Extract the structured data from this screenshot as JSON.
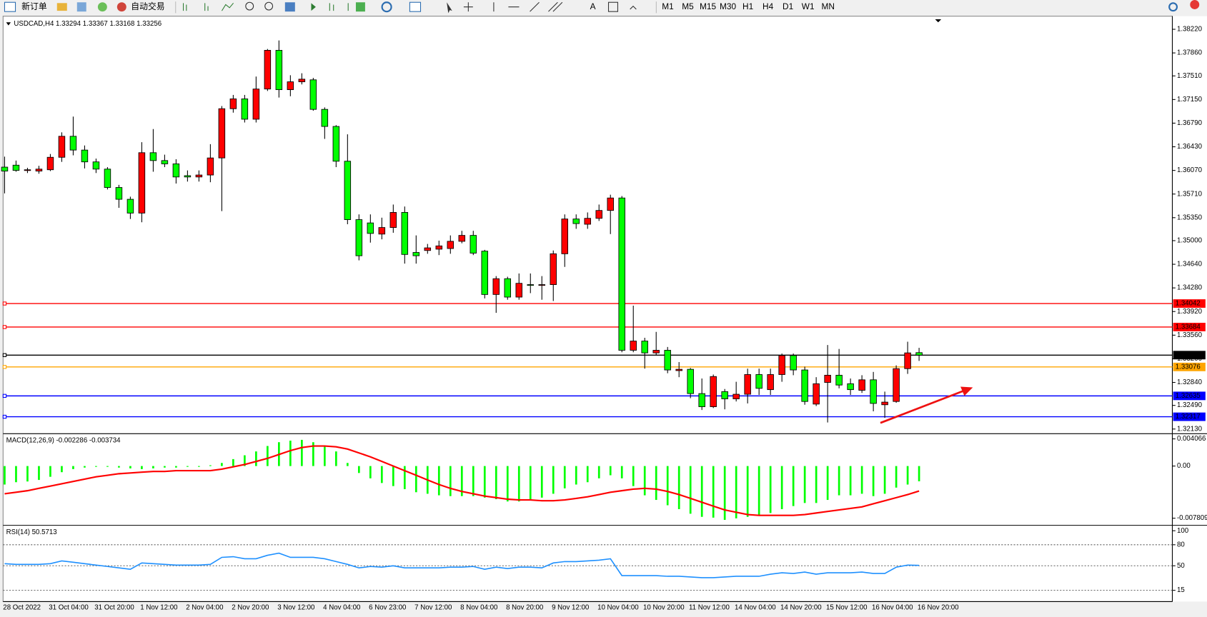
{
  "toolbar": {
    "buttons": [
      "新订单",
      "自动交易"
    ],
    "timeframes": [
      "M1",
      "M5",
      "M15",
      "M30",
      "H1",
      "H4",
      "D1",
      "W1",
      "MN"
    ]
  },
  "chart_data": [
    {
      "type": "candlestick",
      "title": "USDCAD,H4  1.33294 1.33367 1.33168 1.33256",
      "categories": [
        "28 Oct 2022",
        null,
        null,
        null,
        "31 Oct 04:00",
        null,
        null,
        null,
        "31 Oct 20:00",
        null,
        null,
        null,
        "1 Nov 12:00",
        null,
        null,
        null,
        "2 Nov 04:00",
        null,
        null,
        null,
        "2 Nov 20:00",
        null,
        null,
        null,
        "3 Nov 12:00",
        null,
        null,
        null,
        "4 Nov 04:00",
        null,
        null,
        null,
        "6 Nov 23:00",
        null,
        null,
        null,
        "7 Nov 12:00",
        null,
        null,
        null,
        "8 Nov 04:00",
        null,
        null,
        null,
        "8 Nov 20:00",
        null,
        null,
        null,
        "9 Nov 12:00",
        null,
        null,
        null,
        "10 Nov 04:00",
        null,
        null,
        null,
        "10 Nov 20:00",
        null,
        null,
        null,
        "11 Nov 12:00",
        null,
        null,
        null,
        "14 Nov 04:00",
        null,
        null,
        null,
        "14 Nov 20:00",
        null,
        null,
        null,
        "15 Nov 12:00",
        null,
        null,
        null,
        "16 Nov 04:00",
        null,
        null,
        null,
        "16 Nov 20:00"
      ],
      "open": [
        1.3612,
        1.3615,
        1.3607,
        1.3606,
        1.3608,
        1.3627,
        1.3659,
        1.3638,
        1.362,
        1.3609,
        1.3581,
        1.3563,
        1.3542,
        1.3634,
        1.3622,
        1.3617,
        1.3599,
        1.3597,
        1.36,
        1.3626,
        1.3701,
        1.3716,
        1.3685,
        1.3731,
        1.379,
        1.373,
        1.3742,
        1.3745,
        1.37,
        1.3674,
        1.3621,
        1.3532,
        1.3527,
        1.351,
        1.352,
        1.3543,
        1.3482,
        1.3485,
        1.3487,
        1.3488,
        1.3499,
        1.3508,
        1.3484,
        1.3418,
        1.3442,
        1.3414,
        1.3433,
        1.3432,
        1.3433,
        1.348,
        1.3533,
        1.3525,
        1.3534,
        1.3546,
        1.3565,
        1.3333,
        1.3347,
        1.3329,
        1.3333,
        1.3302,
        1.3304,
        1.3267,
        1.3247,
        1.327,
        1.3259,
        1.3266,
        1.3296,
        1.3273,
        1.3296,
        1.3325,
        1.3303,
        1.3251,
        1.3284,
        1.3295,
        1.3282,
        1.3272,
        1.3288,
        1.325,
        1.3255,
        1.3305,
        1.33294
      ],
      "high": [
        1.3628,
        1.3622,
        1.3611,
        1.3614,
        1.3632,
        1.3665,
        1.3689,
        1.3645,
        1.3625,
        1.3612,
        1.3585,
        1.3567,
        1.365,
        1.367,
        1.3631,
        1.3624,
        1.3607,
        1.3607,
        1.3647,
        1.3705,
        1.3722,
        1.3722,
        1.375,
        1.3792,
        1.3805,
        1.3752,
        1.3755,
        1.3748,
        1.3703,
        1.3676,
        1.3662,
        1.354,
        1.354,
        1.3535,
        1.3555,
        1.3552,
        1.3508,
        1.3495,
        1.35,
        1.3508,
        1.3515,
        1.3515,
        1.3486,
        1.3446,
        1.3445,
        1.345,
        1.345,
        1.3446,
        1.3485,
        1.354,
        1.354,
        1.3543,
        1.3555,
        1.357,
        1.3568,
        1.3401,
        1.3352,
        1.3361,
        1.3338,
        1.3315,
        1.3306,
        1.329,
        1.3296,
        1.3274,
        1.3285,
        1.3305,
        1.3305,
        1.3305,
        1.3328,
        1.3328,
        1.3308,
        1.3292,
        1.3341,
        1.3335,
        1.329,
        1.3295,
        1.33,
        1.327,
        1.331,
        1.3346,
        1.33367
      ],
      "low": [
        1.3572,
        1.3605,
        1.3603,
        1.3602,
        1.3606,
        1.362,
        1.363,
        1.361,
        1.3603,
        1.3578,
        1.355,
        1.3533,
        1.3528,
        1.3605,
        1.3612,
        1.3587,
        1.359,
        1.359,
        1.3589,
        1.3545,
        1.3695,
        1.368,
        1.368,
        1.3728,
        1.3718,
        1.372,
        1.3738,
        1.3698,
        1.3655,
        1.3612,
        1.3525,
        1.347,
        1.3497,
        1.3502,
        1.3512,
        1.3465,
        1.3465,
        1.348,
        1.3478,
        1.348,
        1.3496,
        1.3478,
        1.3412,
        1.339,
        1.341,
        1.341,
        1.342,
        1.341,
        1.3408,
        1.346,
        1.3518,
        1.3518,
        1.353,
        1.351,
        1.333,
        1.333,
        1.3305,
        1.3325,
        1.3298,
        1.3292,
        1.326,
        1.3242,
        1.3245,
        1.3243,
        1.3255,
        1.3252,
        1.3265,
        1.3265,
        1.3285,
        1.3295,
        1.325,
        1.3248,
        1.3223,
        1.3275,
        1.3265,
        1.3268,
        1.324,
        1.323,
        1.3253,
        1.3297,
        1.33168
      ],
      "close": [
        1.3606,
        1.3607,
        1.3608,
        1.3609,
        1.3627,
        1.3659,
        1.3638,
        1.362,
        1.3609,
        1.3581,
        1.3563,
        1.3542,
        1.3634,
        1.3622,
        1.3617,
        1.3597,
        1.3597,
        1.36,
        1.3626,
        1.3701,
        1.3716,
        1.3685,
        1.3731,
        1.379,
        1.373,
        1.3742,
        1.3746,
        1.37,
        1.3674,
        1.3621,
        1.3532,
        1.3477,
        1.3511,
        1.352,
        1.3543,
        1.3479,
        1.3477,
        1.3489,
        1.3492,
        1.3499,
        1.3508,
        1.3481,
        1.3418,
        1.3442,
        1.3414,
        1.3435,
        1.3432,
        1.3433,
        1.348,
        1.3533,
        1.3526,
        1.3534,
        1.3546,
        1.3565,
        1.3333,
        1.3347,
        1.3329,
        1.3333,
        1.3303,
        1.3304,
        1.3267,
        1.3247,
        1.3293,
        1.3259,
        1.3266,
        1.3296,
        1.3275,
        1.3296,
        1.3325,
        1.3303,
        1.3255,
        1.3282,
        1.3295,
        1.328,
        1.3273,
        1.3288,
        1.3252,
        1.3254,
        1.3305,
        1.3329,
        1.33256
      ],
      "up_color": "#ff0000",
      "down_color": "#00ff00",
      "ylim": [
        1.32071,
        1.38408
      ],
      "yticks": [
        {
          "value": 1.3822,
          "label": "1.38220"
        },
        {
          "value": 1.3786,
          "label": "1.37860"
        },
        {
          "value": 1.3751,
          "label": "1.37510"
        },
        {
          "value": 1.3715,
          "label": "1.37150"
        },
        {
          "value": 1.3679,
          "label": "1.36790"
        },
        {
          "value": 1.3643,
          "label": "1.36430"
        },
        {
          "value": 1.3607,
          "label": "1.36070"
        },
        {
          "value": 1.3571,
          "label": "1.35710"
        },
        {
          "value": 1.3535,
          "label": "1.35350"
        },
        {
          "value": 1.35,
          "label": "1.35000"
        },
        {
          "value": 1.3464,
          "label": "1.34640"
        },
        {
          "value": 1.3428,
          "label": "1.34280"
        },
        {
          "value": 1.3392,
          "label": "1.33920"
        },
        {
          "value": 1.3356,
          "label": "1.33560"
        },
        {
          "value": 1.332,
          "label": "1.33200"
        },
        {
          "value": 1.3284,
          "label": "1.32840"
        },
        {
          "value": 1.3249,
          "label": "1.32490"
        },
        {
          "value": 1.3213,
          "label": "1.32130"
        }
      ],
      "levels": [
        {
          "value": 1.34042,
          "label": "1.34042",
          "color": "#ff0000"
        },
        {
          "value": 1.33684,
          "label": "1.33684",
          "color": "#ff0000"
        },
        {
          "value": 1.33256,
          "label": "1.33256",
          "color": "#000000"
        },
        {
          "value": 1.33076,
          "label": "1.33076",
          "color": "#ffa500"
        },
        {
          "value": 1.32635,
          "label": "1.32635",
          "color": "#0000ff"
        },
        {
          "value": 1.32317,
          "label": "1.32317",
          "color": "#0000ff"
        }
      ]
    },
    {
      "type": "macd",
      "title": "MACD(12,26,9) -0.002286 -0.003734",
      "histogram": {
        "color": "#00ff00",
        "values": [
          -0.00277,
          -0.00242,
          -0.00231,
          -0.00208,
          -0.00161,
          -0.00092,
          -0.00046,
          -0.00023,
          -0.00012,
          -0.00012,
          -0.00023,
          -0.00035,
          -0.00046,
          -0.00035,
          -0.00023,
          -0.00023,
          -0.00012,
          -0.00012,
          0.00012,
          0.00046,
          0.00104,
          0.00161,
          0.00219,
          0.003,
          0.00357,
          0.0038,
          0.00392,
          0.00357,
          0.003,
          0.00219,
          0.00046,
          -0.00104,
          -0.00184,
          -0.00254,
          -0.003,
          -0.00346,
          -0.00392,
          -0.00415,
          -0.00438,
          -0.0045,
          -0.0045,
          -0.0045,
          -0.00473,
          -0.00496,
          -0.0053,
          -0.0053,
          -0.00507,
          -0.00473,
          -0.00415,
          -0.00334,
          -0.00277,
          -0.00242,
          -0.00184,
          -0.00138,
          -0.00184,
          -0.003,
          -0.00438,
          -0.00507,
          -0.00587,
          -0.00645,
          -0.00714,
          -0.0076,
          -0.00772,
          -0.00806,
          -0.00783,
          -0.0076,
          -0.00737,
          -0.00703,
          -0.00645,
          -0.00599,
          -0.00553,
          -0.00553,
          -0.00507,
          -0.00438,
          -0.00438,
          -0.00415,
          -0.0045,
          -0.00415,
          -0.00323,
          -0.00277,
          -0.002286
        ]
      },
      "signal": {
        "color": "#ff0000",
        "values": [
          -0.00415,
          -0.00392,
          -0.00369,
          -0.00334,
          -0.003,
          -0.00265,
          -0.00231,
          -0.00196,
          -0.00161,
          -0.00138,
          -0.00115,
          -0.00104,
          -0.00092,
          -0.00081,
          -0.00081,
          -0.00069,
          -0.00069,
          -0.00069,
          -0.00069,
          -0.00046,
          -0.00012,
          0.00023,
          0.00069,
          0.00115,
          0.00173,
          0.00231,
          0.00277,
          0.003,
          0.003,
          0.00288,
          0.00254,
          0.00196,
          0.00138,
          0.00069,
          0,
          -0.00069,
          -0.00138,
          -0.00208,
          -0.00277,
          -0.00334,
          -0.0038,
          -0.00415,
          -0.0045,
          -0.00473,
          -0.00496,
          -0.00507,
          -0.00507,
          -0.00519,
          -0.00519,
          -0.00507,
          -0.00484,
          -0.00461,
          -0.00427,
          -0.00392,
          -0.00369,
          -0.00346,
          -0.00334,
          -0.00346,
          -0.0038,
          -0.00427,
          -0.00484,
          -0.00542,
          -0.006,
          -0.00657,
          -0.00692,
          -0.00726,
          -0.00738,
          -0.00738,
          -0.00738,
          -0.00738,
          -0.00726,
          -0.00703,
          -0.0068,
          -0.00657,
          -0.00634,
          -0.00611,
          -0.00565,
          -0.00519,
          -0.00473,
          -0.00427,
          -0.003734
        ]
      },
      "ylim": [
        -0.00876,
        0.00473
      ],
      "yticks": [
        0.004066,
        {
          "value": 0,
          "label": "0.00"
        },
        -0.007809
      ]
    },
    {
      "type": "rsi",
      "title": "RSI(14) 50.5713",
      "color": "#1e90ff",
      "values": [
        53,
        52,
        52,
        52,
        53,
        57,
        55,
        53,
        51,
        49,
        47,
        45,
        54,
        53,
        52,
        51,
        51,
        51,
        52,
        62,
        63,
        60,
        60,
        65,
        68,
        62,
        62,
        62,
        60,
        56,
        52,
        47,
        49,
        48,
        50,
        47,
        47,
        47,
        47,
        48,
        48,
        49,
        45,
        48,
        46,
        48,
        48,
        47,
        54,
        56,
        56,
        57,
        58,
        60,
        36,
        36,
        36,
        36,
        35,
        35,
        34,
        33,
        33,
        34,
        35,
        35,
        35,
        38,
        40,
        39,
        41,
        38,
        40,
        40,
        40,
        41,
        39,
        39,
        48,
        51,
        50.5713
      ],
      "ylim": [
        0,
        106.6
      ],
      "yticks": [
        100,
        80,
        50,
        15
      ],
      "levels": [
        80,
        50,
        15
      ]
    }
  ]
}
